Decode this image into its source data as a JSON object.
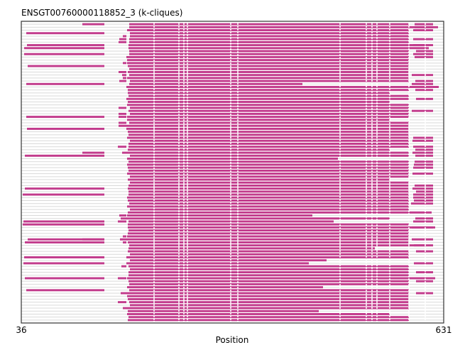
{
  "chart_data": {
    "type": "alignment",
    "title": "ENSGT00760000118852_3 (k-cliques)",
    "xlabel": "Position",
    "ylabel": "",
    "xlim": [
      36,
      631
    ],
    "x_tick_labels": [
      "36",
      "631"
    ],
    "row_count": 100,
    "grid": false,
    "legend": "none",
    "colors": {
      "aligned": "#c23b8c",
      "gap_line": "#d9d9d9",
      "frame": "#333333"
    },
    "column_breaks": [
      223,
      258,
      265,
      270,
      331,
      341,
      485,
      522,
      530,
      537,
      555,
      582,
      605
    ]
  }
}
